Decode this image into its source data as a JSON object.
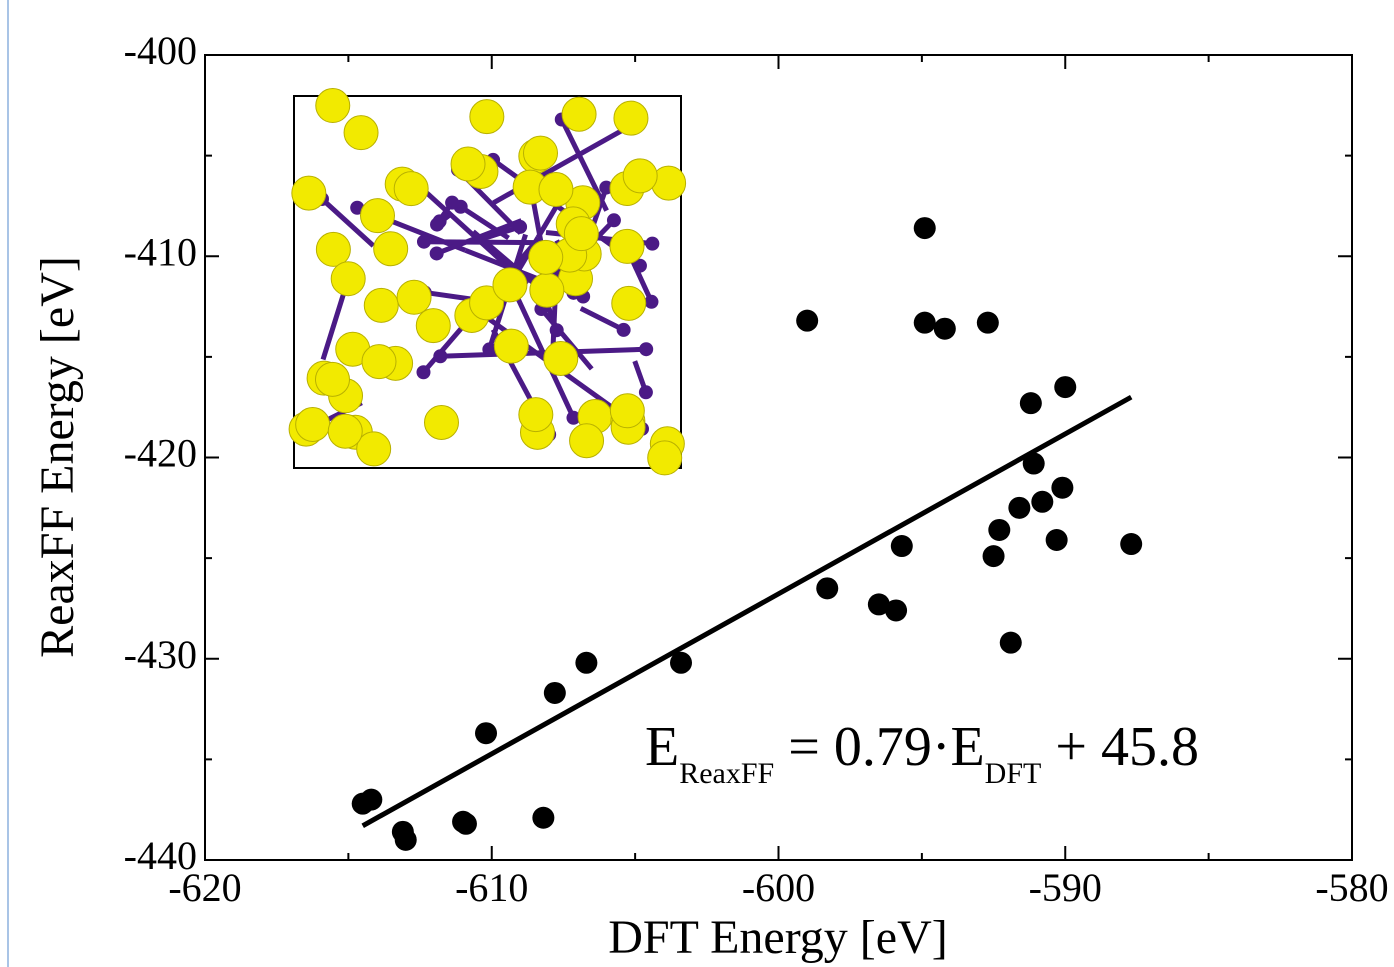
{
  "chart_data": {
    "type": "scatter",
    "x_label": "DFT Energy [eV]",
    "y_label": "ReaxFF Energy [eV]",
    "xlim": [
      -620,
      -580
    ],
    "xticks": [
      -620,
      -610,
      -600,
      -590,
      -580
    ],
    "ylim": [
      -440,
      -400
    ],
    "yticks": [
      -440,
      -430,
      -420,
      -410,
      -400
    ],
    "grid": false,
    "series": [
      {
        "color": "#000000",
        "x": [
          -614.5,
          -614.2,
          -613.1,
          -613.0,
          -611.0,
          -610.9,
          -610.2,
          -608.2,
          -607.8,
          -606.7,
          -603.4,
          -599.0,
          -598.3,
          -596.5,
          -595.9,
          -595.7,
          -594.9,
          -594.9,
          -594.2,
          -592.7,
          -592.5,
          -592.3,
          -591.9,
          -591.6,
          -591.2,
          -591.1,
          -590.8,
          -590.3,
          -590.1,
          -590.0,
          -587.7
        ],
        "values": [
          -437.2,
          -437.0,
          -438.6,
          -439.0,
          -438.1,
          -438.2,
          -433.7,
          -437.9,
          -431.7,
          -430.2,
          -430.2,
          -413.2,
          -426.5,
          -427.3,
          -427.6,
          -424.4,
          -408.6,
          -413.3,
          -413.6,
          -413.3,
          -424.9,
          -423.6,
          -429.2,
          -422.5,
          -417.3,
          -420.3,
          -422.2,
          -424.1,
          -421.5,
          -416.5,
          -424.3
        ]
      }
    ],
    "fit": {
      "color": "#000000",
      "x": [
        -614.5,
        -587.7
      ],
      "values": [
        -438.3,
        -417.0
      ]
    },
    "annotation": [
      "E",
      "ReaxFF",
      " = 0.79·E",
      "DFT",
      " + 45.8"
    ]
  }
}
